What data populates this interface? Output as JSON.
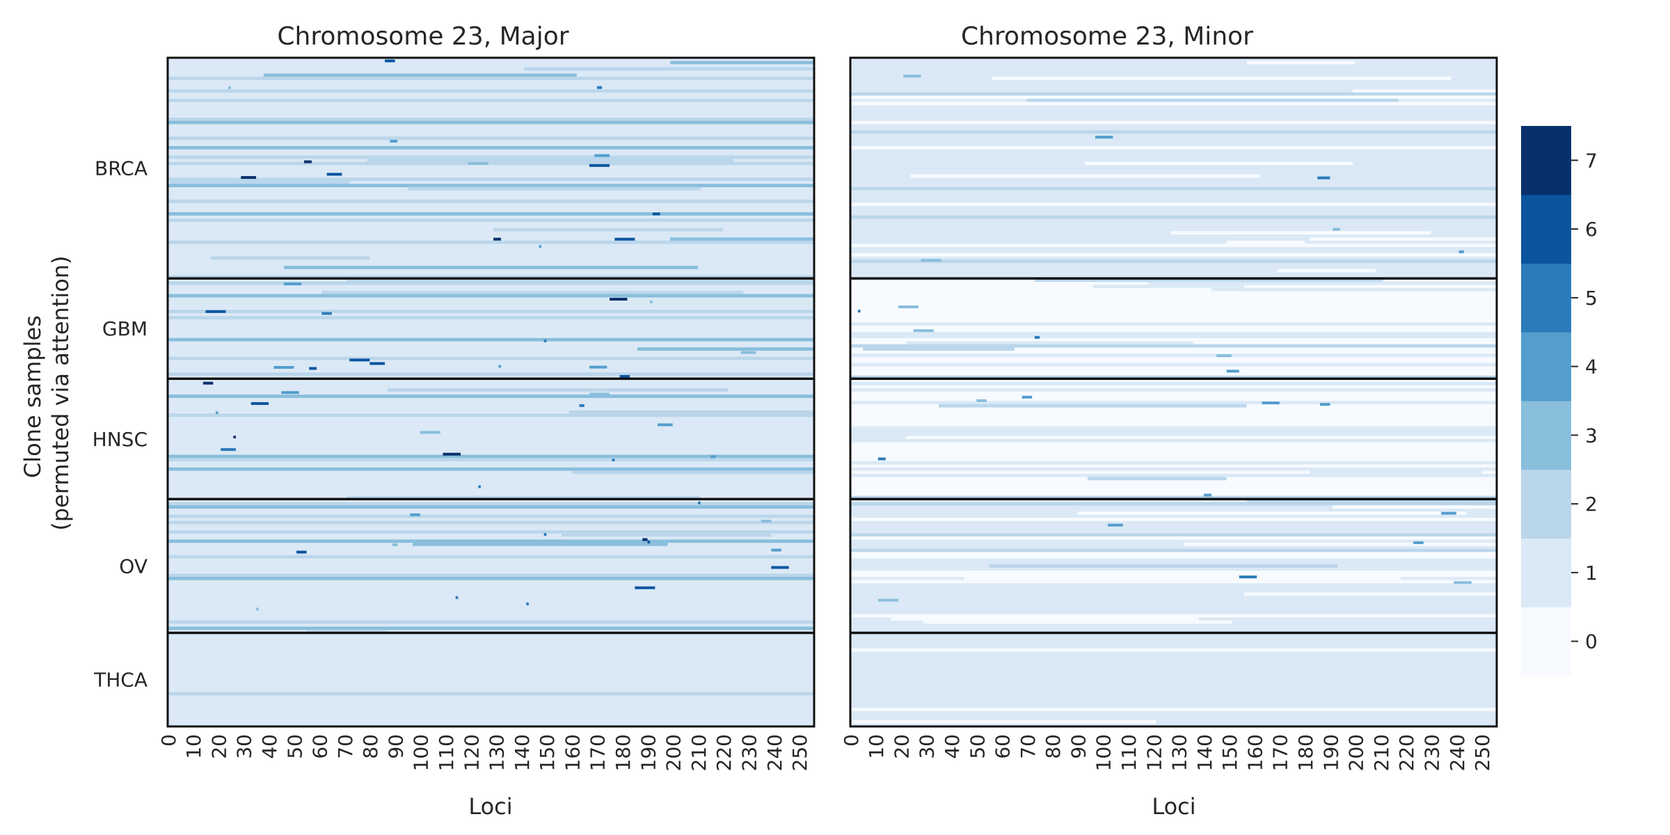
{
  "chart_data": [
    {
      "type": "heatmap",
      "title": "Chromosome 23, Major",
      "xlabel": "Loci",
      "ylabel": "Clone samples\n(permuted via attention)",
      "x_ticks": [
        0,
        10,
        20,
        30,
        40,
        50,
        60,
        70,
        80,
        90,
        100,
        110,
        120,
        130,
        140,
        150,
        160,
        170,
        180,
        190,
        200,
        210,
        220,
        230,
        240,
        250
      ],
      "x_range": [
        0,
        256
      ],
      "groups": [
        {
          "name": "BRCA",
          "fraction": 0.33
        },
        {
          "name": "GBM",
          "fraction": 0.15
        },
        {
          "name": "HNSC",
          "fraction": 0.18
        },
        {
          "name": "OV",
          "fraction": 0.2
        },
        {
          "name": "THCA",
          "fraction": 0.14
        }
      ],
      "dominant_value_by_group": {
        "BRCA": 1,
        "GBM": 1,
        "HNSC": 1,
        "OV": 1,
        "THCA": 1
      },
      "secondary_value_by_group": {
        "BRCA": 2,
        "GBM": 2,
        "HNSC": 2,
        "OV": 2,
        "THCA": 2
      }
    },
    {
      "type": "heatmap",
      "title": "Chromosome 23, Minor",
      "xlabel": "Loci",
      "x_ticks": [
        0,
        10,
        20,
        30,
        40,
        50,
        60,
        70,
        80,
        90,
        100,
        110,
        120,
        130,
        140,
        150,
        160,
        170,
        180,
        190,
        200,
        210,
        220,
        230,
        240,
        250
      ],
      "x_range": [
        0,
        256
      ],
      "groups": [
        {
          "name": "BRCA",
          "fraction": 0.33
        },
        {
          "name": "GBM",
          "fraction": 0.15
        },
        {
          "name": "HNSC",
          "fraction": 0.18
        },
        {
          "name": "OV",
          "fraction": 0.2
        },
        {
          "name": "THCA",
          "fraction": 0.14
        }
      ],
      "dominant_value_by_group": {
        "BRCA": 1,
        "GBM": 0,
        "HNSC": 0,
        "OV": 1,
        "THCA": 1
      },
      "secondary_value_by_group": {
        "BRCA": 0,
        "GBM": 1,
        "HNSC": 1,
        "OV": 0,
        "THCA": 0
      }
    }
  ],
  "colorbar": {
    "ticks": [
      "0",
      "1",
      "2",
      "3",
      "4",
      "5",
      "6",
      "7"
    ],
    "colors": [
      "#f7fbff",
      "#dbe9f6",
      "#bad6eb",
      "#89bedc",
      "#539ecd",
      "#2b7bba",
      "#0b559f",
      "#08306b"
    ]
  }
}
